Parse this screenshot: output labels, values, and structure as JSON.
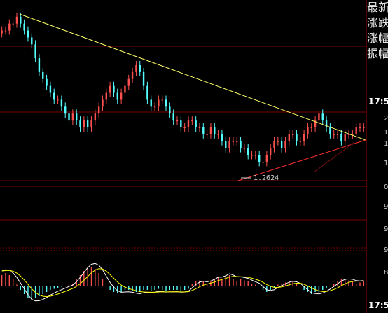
{
  "side_panel": {
    "labels": [
      "最新",
      "涨跌",
      "涨幅",
      "振幅"
    ],
    "time_top": "17:5",
    "time_bottom": "17:5",
    "ticks": [
      "2",
      "1",
      "1",
      "1",
      "0",
      "9",
      "9",
      "9",
      "8"
    ]
  },
  "colors": {
    "background": "#000000",
    "up_bar": "#ff5050",
    "down_bar": "#54ffff",
    "trendline_upper": "#ffff66",
    "trendline_lower": "#ff3030",
    "grid": "#7a0000",
    "macd_dif": "#ffffff",
    "macd_dea": "#ffff00"
  },
  "chart_data": {
    "type": "candlestick",
    "annotation": "1.2624",
    "closes": [
      1.46,
      1.46,
      1.47,
      1.47,
      1.48,
      1.47,
      1.46,
      1.45,
      1.44,
      1.42,
      1.4,
      1.39,
      1.38,
      1.37,
      1.36,
      1.36,
      1.35,
      1.34,
      1.33,
      1.34,
      1.33,
      1.32,
      1.33,
      1.32,
      1.33,
      1.34,
      1.35,
      1.36,
      1.37,
      1.38,
      1.37,
      1.36,
      1.37,
      1.38,
      1.39,
      1.4,
      1.41,
      1.4,
      1.38,
      1.36,
      1.35,
      1.35,
      1.36,
      1.36,
      1.35,
      1.34,
      1.33,
      1.33,
      1.32,
      1.32,
      1.33,
      1.33,
      1.32,
      1.32,
      1.31,
      1.31,
      1.32,
      1.31,
      1.31,
      1.3,
      1.29,
      1.3,
      1.3,
      1.3,
      1.29,
      1.29,
      1.28,
      1.28,
      1.28,
      1.27,
      1.27,
      1.28,
      1.29,
      1.3,
      1.3,
      1.29,
      1.3,
      1.31,
      1.31,
      1.3,
      1.3,
      1.31,
      1.32,
      1.32,
      1.33,
      1.34,
      1.33,
      1.32,
      1.31,
      1.31,
      1.31,
      1.3,
      1.31,
      1.31,
      1.31,
      1.32,
      1.32,
      1.32
    ],
    "ylim": [
      1.14,
      1.5
    ],
    "macd": [
      0.01,
      0.012,
      0.01,
      0.006,
      0.001,
      -0.004,
      -0.008,
      -0.012,
      -0.014,
      -0.012,
      -0.01,
      -0.008,
      -0.006,
      -0.004,
      -0.003,
      -0.002,
      -0.001,
      0.0,
      0.001,
      0.002,
      0.006,
      0.01,
      0.014,
      0.017,
      0.018,
      0.016,
      0.012,
      0.006,
      0.0,
      -0.004,
      -0.006,
      -0.007,
      -0.006,
      -0.004,
      -0.004,
      -0.005,
      -0.006,
      -0.006,
      -0.004,
      -0.004,
      -0.005,
      -0.004,
      -0.003,
      -0.004,
      -0.005,
      -0.004,
      -0.004,
      -0.004,
      -0.005,
      -0.004,
      -0.003,
      0.002,
      0.004,
      0.005,
      0.004,
      0.002,
      0.004,
      0.006,
      0.008,
      0.006,
      0.008,
      0.01,
      0.006,
      0.004,
      0.006,
      0.005,
      0.004,
      0.002,
      0.001,
      0.0,
      -0.004,
      -0.006,
      -0.004,
      -0.002,
      0.001,
      0.002,
      0.003,
      0.004,
      0.004,
      0.002,
      0.0,
      -0.004,
      -0.006,
      -0.008,
      -0.006,
      -0.006,
      -0.004,
      -0.002,
      0.0,
      0.002,
      0.004,
      0.006,
      0.006,
      0.005,
      0.004,
      0.002,
      0.003,
      0.004
    ]
  }
}
